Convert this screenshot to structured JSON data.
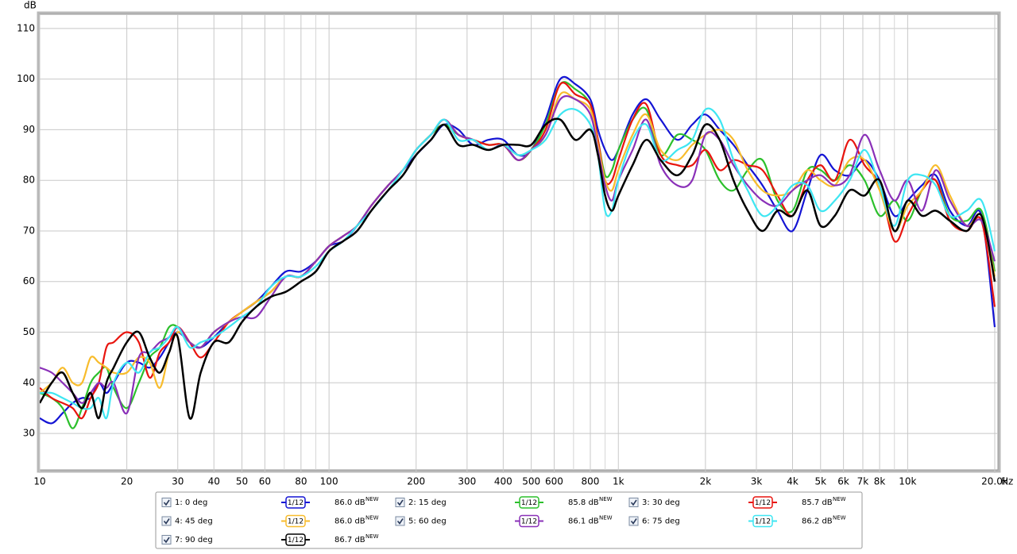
{
  "chart_data": {
    "type": "line",
    "y_label": "dB",
    "x_label": "Hz",
    "xscale": "log",
    "grid": true,
    "xlim": [
      10,
      20000
    ],
    "ylim": [
      22.8,
      112.8
    ],
    "yticks": [
      30,
      40,
      50,
      60,
      70,
      80,
      90,
      100,
      110
    ],
    "xticks": [
      10,
      20,
      30,
      40,
      50,
      60,
      80,
      100,
      200,
      300,
      400,
      500,
      600,
      800,
      {
        "value": 1000,
        "label": "1k"
      },
      {
        "value": 2000,
        "label": "2k"
      },
      {
        "value": 3000,
        "label": "3k"
      },
      {
        "value": 4000,
        "label": "4k"
      },
      {
        "value": 5000,
        "label": "5k"
      },
      {
        "value": 6000,
        "label": "6k"
      },
      {
        "value": 7000,
        "label": "7k"
      },
      {
        "value": 8000,
        "label": "8k"
      },
      {
        "value": 10000,
        "label": "10k"
      },
      {
        "value": 20000,
        "label": "20.0k"
      }
    ],
    "xminor": [
      70,
      90,
      700,
      900,
      9000
    ],
    "x": [
      10,
      11,
      12,
      13,
      14,
      15,
      16,
      17,
      18,
      20,
      22,
      24,
      26,
      28,
      30,
      33,
      36,
      40,
      45,
      50,
      56,
      63,
      71,
      80,
      90,
      100,
      112,
      125,
      140,
      160,
      180,
      200,
      225,
      250,
      280,
      315,
      355,
      400,
      450,
      500,
      560,
      630,
      710,
      800,
      850,
      900,
      950,
      1000,
      1120,
      1250,
      1400,
      1600,
      1800,
      2000,
      2240,
      2500,
      2800,
      3150,
      3550,
      4000,
      4500,
      5000,
      5600,
      6300,
      7100,
      8000,
      9000,
      10000,
      11200,
      12500,
      14000,
      16000,
      18000,
      20000
    ],
    "series": [
      {
        "name": "1: 0 deg",
        "color": "#1414d4",
        "smoothing": "1/12",
        "level_label": "86.0 dB",
        "badge": "NEW",
        "values": [
          33,
          32,
          34,
          36,
          37,
          37,
          40,
          38,
          40,
          44,
          44,
          43,
          45,
          48,
          50,
          48,
          47,
          49,
          52,
          54,
          56,
          59,
          62,
          62,
          64,
          67,
          68,
          71,
          75,
          79,
          82,
          85,
          88,
          91,
          90,
          87,
          88,
          88,
          85,
          86,
          92,
          100,
          99,
          96,
          90,
          86,
          84,
          86,
          93,
          96,
          92,
          88,
          91,
          93,
          90,
          87,
          83,
          79,
          74,
          70,
          78,
          85,
          82,
          81,
          84,
          80,
          73,
          76,
          79,
          81,
          74,
          71,
          73,
          51
        ]
      },
      {
        "name": "2: 15 deg",
        "color": "#2cc02c",
        "smoothing": "1/12",
        "level_label": "85.8 dB",
        "badge": "NEW",
        "values": [
          38,
          37,
          35,
          31,
          35,
          40,
          42,
          43,
          39,
          35,
          40,
          45,
          47,
          51,
          51,
          48,
          47,
          50,
          52,
          54,
          56,
          58,
          61,
          61,
          64,
          67,
          69,
          71,
          75,
          79,
          82,
          86,
          89,
          91,
          89,
          88,
          87,
          87,
          84,
          86,
          91,
          99,
          98,
          95,
          88,
          81,
          82,
          86,
          92,
          94,
          85,
          89,
          88,
          86,
          80,
          78,
          82,
          84,
          76,
          74,
          82,
          82,
          80,
          83,
          80,
          73,
          76,
          72,
          78,
          80,
          73,
          72,
          74,
          62
        ]
      },
      {
        "name": "3: 30 deg",
        "color": "#e8140e",
        "smoothing": "1/12",
        "level_label": "85.7 dB",
        "badge": "NEW",
        "values": [
          39,
          37,
          36,
          35,
          33,
          37,
          40,
          47,
          48,
          50,
          48,
          41,
          46,
          48,
          51,
          48,
          45,
          48,
          52,
          54,
          56,
          58,
          61,
          61,
          64,
          67,
          69,
          71,
          75,
          79,
          82,
          86,
          89,
          92,
          89,
          88,
          87,
          87,
          84,
          86,
          90,
          99,
          97,
          95,
          88,
          80,
          80,
          84,
          92,
          95,
          85,
          83,
          83,
          86,
          82,
          84,
          83,
          82,
          77,
          73,
          80,
          83,
          80,
          88,
          83,
          79,
          68,
          73,
          78,
          80,
          72,
          70,
          72,
          55
        ]
      },
      {
        "name": "4: 45 deg",
        "color": "#f8bc2c",
        "smoothing": "1/12",
        "level_label": "86.0 dB",
        "badge": "NEW",
        "values": [
          38,
          40,
          43,
          40,
          40,
          45,
          44,
          43,
          42,
          42,
          45,
          44,
          39,
          46,
          50,
          48,
          47,
          50,
          52,
          54,
          56,
          58,
          61,
          61,
          64,
          67,
          69,
          71,
          75,
          79,
          82,
          86,
          89,
          92,
          89,
          88,
          86,
          87,
          85,
          86,
          89,
          97,
          96,
          94,
          87,
          80,
          78,
          82,
          89,
          93,
          86,
          84,
          87,
          89,
          90,
          88,
          82,
          78,
          77,
          78,
          82,
          80,
          79,
          84,
          84,
          78,
          70,
          75,
          78,
          83,
          77,
          71,
          73,
          61
        ]
      },
      {
        "name": "5: 60 deg",
        "color": "#8a30b8",
        "smoothing": "1/12",
        "level_label": "86.1 dB",
        "badge": "NEW",
        "values": [
          43,
          42,
          40,
          38,
          36,
          38,
          40,
          39,
          40,
          34,
          45,
          46,
          48,
          49,
          51,
          48,
          47,
          50,
          52,
          53,
          53,
          57,
          61,
          61,
          64,
          67,
          69,
          71,
          75,
          79,
          82,
          86,
          89,
          92,
          89,
          88,
          86,
          87,
          84,
          86,
          89,
          96,
          96,
          93,
          86,
          79,
          76,
          80,
          86,
          92,
          83,
          79,
          80,
          89,
          88,
          83,
          79,
          76,
          75,
          78,
          80,
          81,
          79,
          81,
          89,
          82,
          76,
          80,
          74,
          82,
          76,
          71,
          72,
          64
        ]
      },
      {
        "name": "6: 75 deg",
        "color": "#3ee6f2",
        "smoothing": "1/12",
        "level_label": "86.2 dB",
        "badge": "NEW",
        "values": [
          38,
          38,
          37,
          36,
          35,
          35,
          37,
          33,
          40,
          44,
          42,
          46,
          47,
          49,
          51,
          47,
          48,
          49,
          51,
          53,
          55,
          59,
          61,
          61,
          63,
          66,
          68,
          71,
          74,
          78,
          82,
          86,
          89,
          92,
          88,
          88,
          86,
          87,
          85,
          86,
          88,
          93,
          94,
          91,
          85,
          74,
          74,
          80,
          88,
          91,
          84,
          86,
          88,
          94,
          92,
          84,
          78,
          73,
          75,
          79,
          79,
          74,
          76,
          80,
          86,
          79,
          71,
          80,
          81,
          79,
          73,
          74,
          76,
          66
        ]
      },
      {
        "name": "7: 90 deg",
        "color": "#000000",
        "smoothing": "1/12",
        "level_label": "86.7 dB",
        "badge": "NEW",
        "values": [
          36,
          40,
          42,
          38,
          35,
          38,
          33,
          40,
          43,
          48,
          50,
          45,
          42,
          46,
          49,
          33,
          42,
          48,
          48,
          52,
          55,
          57,
          58,
          60,
          62,
          66,
          68,
          70,
          74,
          78,
          81,
          85,
          88,
          91,
          87,
          87,
          86,
          87,
          87,
          87,
          91,
          92,
          88,
          90,
          85,
          77,
          74,
          77,
          83,
          88,
          84,
          81,
          85,
          91,
          88,
          80,
          74,
          70,
          74,
          73,
          78,
          71,
          73,
          78,
          77,
          80,
          70,
          76,
          73,
          74,
          72,
          70,
          73,
          60
        ]
      }
    ]
  }
}
